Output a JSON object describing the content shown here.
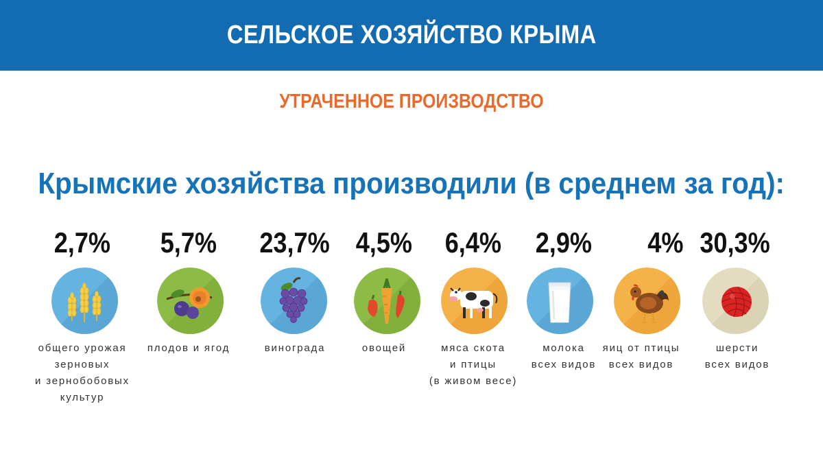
{
  "header": {
    "title": "СЕЛЬСКОЕ ХОЗЯЙСТВО КРЫМА"
  },
  "subtitle": "УТРАЧЕННОЕ ПРОИЗВОДСТВО",
  "lead": "Крымские хозяйства производили (в среднем за год):",
  "items": [
    {
      "percent": "2,7%",
      "label": [
        "общего урожая",
        "зерновых",
        "и зернобобовых",
        "культур"
      ],
      "icon": "wheat-icon",
      "circle_color": "#64b3e1"
    },
    {
      "percent": "5,7%",
      "label": [
        "плодов и ягод"
      ],
      "icon": "plum-icon",
      "circle_color": "#8cbc45"
    },
    {
      "percent": "23,7%",
      "label": [
        "винограда"
      ],
      "icon": "grapes-icon",
      "circle_color": "#64b3e1"
    },
    {
      "percent": "4,5%",
      "label": [
        "овощей"
      ],
      "icon": "vegetables-icon",
      "circle_color": "#8cbc45"
    },
    {
      "percent": "6,4%",
      "label": [
        "мяса скота",
        "и птицы",
        "(в живом весе)"
      ],
      "icon": "cow-icon",
      "circle_color": "#f4b248"
    },
    {
      "percent": "2,9%",
      "label": [
        "молока",
        "всех видов"
      ],
      "icon": "milk-glass-icon",
      "circle_color": "#64b3e1"
    },
    {
      "percent": "4%",
      "label": [
        "яиц от птицы",
        "всех видов"
      ],
      "icon": "hen-icon",
      "circle_color": "#f4b248"
    },
    {
      "percent": "30,3%",
      "label": [
        "шерсти",
        "всех видов"
      ],
      "icon": "wool-ball-icon",
      "circle_color": "#e3dcc1"
    }
  ]
}
